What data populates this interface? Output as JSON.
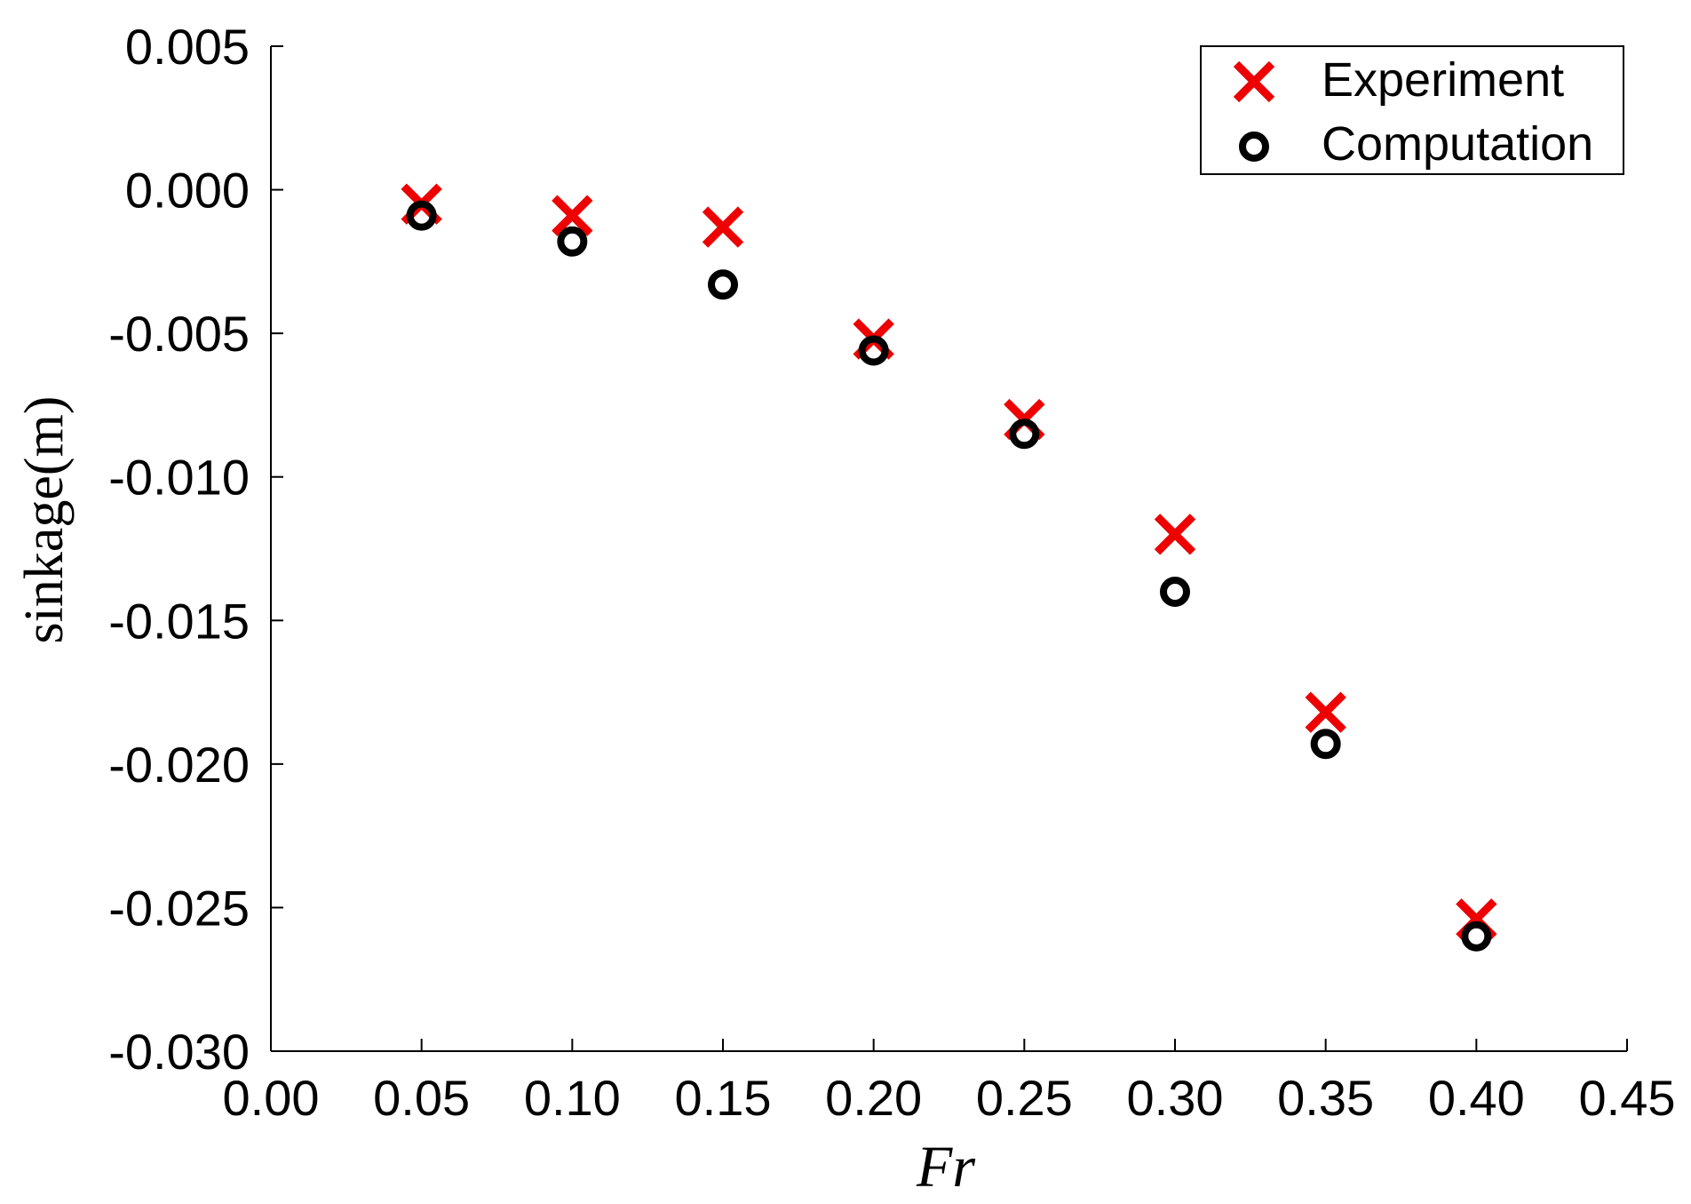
{
  "chart_data": {
    "type": "scatter",
    "xlabel": "Fr",
    "ylabel": "sinkage(m)",
    "xlim": [
      0.0,
      0.45
    ],
    "ylim": [
      -0.03,
      0.005
    ],
    "x_ticks": [
      "0.00",
      "0.05",
      "0.10",
      "0.15",
      "0.20",
      "0.25",
      "0.30",
      "0.35",
      "0.40",
      "0.45"
    ],
    "y_ticks": [
      "0.005",
      "0.000",
      "-0.005",
      "-0.010",
      "-0.015",
      "-0.020",
      "-0.025",
      "-0.030"
    ],
    "legend_position": "top-right",
    "grid": false,
    "series": [
      {
        "name": "Experiment",
        "marker": "x",
        "color": "#ee0000",
        "x": [
          0.05,
          0.1,
          0.15,
          0.2,
          0.25,
          0.3,
          0.35,
          0.4
        ],
        "y": [
          -0.0005,
          -0.0009,
          -0.0013,
          -0.0052,
          -0.008,
          -0.012,
          -0.0182,
          -0.0254
        ]
      },
      {
        "name": "Computation",
        "marker": "circle",
        "color": "#000000",
        "x": [
          0.05,
          0.1,
          0.15,
          0.2,
          0.25,
          0.3,
          0.35,
          0.4
        ],
        "y": [
          -0.0009,
          -0.0018,
          -0.0033,
          -0.0056,
          -0.0085,
          -0.014,
          -0.0193,
          -0.026
        ]
      }
    ]
  }
}
